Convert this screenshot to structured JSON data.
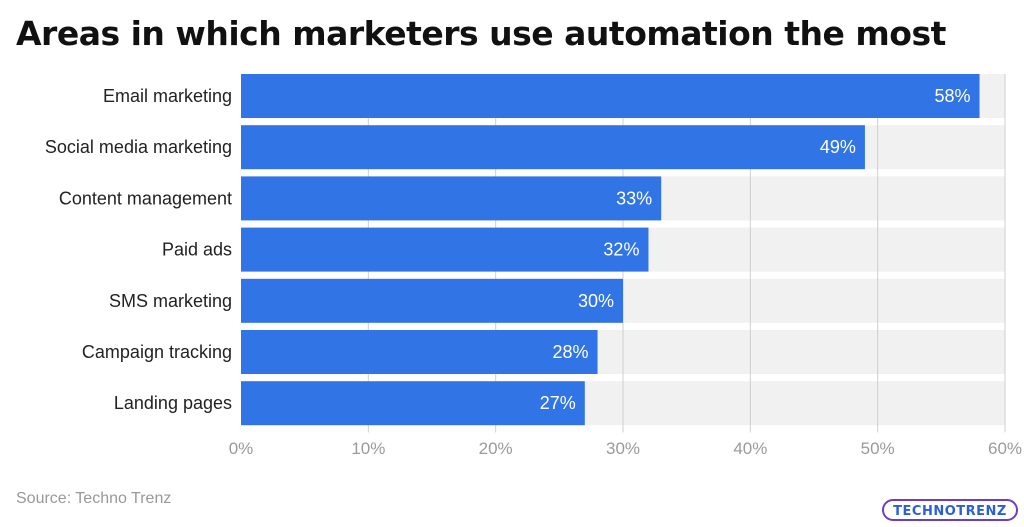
{
  "title": "Areas in which marketers use automation the most",
  "source": "Source: Techno Trenz",
  "logo_text": "TECHNOTRENZ",
  "colors": {
    "bar": "#3174E6",
    "band": "#F1F1F1",
    "grid": "#CFCFCF",
    "tick_text": "#9A9A9A",
    "label_text": "#222222",
    "value_text": "#FFFFFF"
  },
  "chart_data": {
    "type": "bar",
    "orientation": "horizontal",
    "categories": [
      "Email marketing",
      "Social media marketing",
      "Content management",
      "Paid ads",
      "SMS marketing",
      "Campaign tracking",
      "Landing pages"
    ],
    "values": [
      58,
      49,
      33,
      32,
      30,
      28,
      27
    ],
    "value_labels": [
      "58%",
      "49%",
      "33%",
      "32%",
      "30%",
      "28%",
      "27%"
    ],
    "xlim": [
      0,
      60
    ],
    "xticks": [
      0,
      10,
      20,
      30,
      40,
      50,
      60
    ],
    "xtick_labels": [
      "0%",
      "10%",
      "20%",
      "30%",
      "40%",
      "50%",
      "60%"
    ],
    "grid": true
  }
}
